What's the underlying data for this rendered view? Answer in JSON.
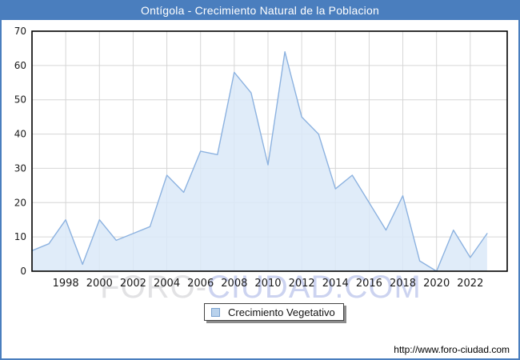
{
  "title": "Ontígola - Crecimiento Natural de la Poblacion",
  "legend": {
    "label": "Crecimiento Vegetativo"
  },
  "footer": {
    "url": "http://www.foro-ciudad.com"
  },
  "watermark": {
    "part1": "FORO-",
    "part2": "CIUDAD.COM"
  },
  "colors": {
    "titlebar": "#4a7ebe",
    "frame_border": "#4a7ebe",
    "plot_background": "#ffffff",
    "gridline": "#d6d6d6",
    "axis_border": "#000000",
    "line": "#8cb2e0",
    "fill": "#dbe9f8",
    "tick_label": "#1a1a1a",
    "legend_marker_fill": "#b9d2ec",
    "legend_marker_border": "#7aa2cf",
    "watermark_part1": "#e2e2e4",
    "watermark_part2": "#ccd3f0"
  },
  "chart_data": {
    "type": "area",
    "title": "Ontígola - Crecimiento Natural de la Poblacion",
    "xlabel": "",
    "ylabel": "",
    "x": [
      1996,
      1997,
      1998,
      1999,
      2000,
      2001,
      2002,
      2003,
      2004,
      2005,
      2006,
      2007,
      2008,
      2009,
      2010,
      2011,
      2012,
      2013,
      2014,
      2015,
      2016,
      2017,
      2018,
      2019,
      2020,
      2021,
      2022,
      2023
    ],
    "series": [
      {
        "name": "Crecimiento Vegetativo",
        "values": [
          6,
          8,
          15,
          2,
          15,
          9,
          11,
          13,
          28,
          23,
          35,
          34,
          58,
          52,
          31,
          64,
          45,
          40,
          24,
          28,
          20,
          12,
          22,
          3,
          0,
          12,
          4,
          11
        ]
      }
    ],
    "ylim": [
      0,
      70
    ],
    "yticks": [
      0,
      10,
      20,
      30,
      40,
      50,
      60,
      70
    ],
    "xticks": [
      1998,
      2000,
      2002,
      2004,
      2006,
      2008,
      2010,
      2012,
      2014,
      2016,
      2018,
      2020,
      2022
    ],
    "grid": true,
    "legend_position": "bottom"
  }
}
